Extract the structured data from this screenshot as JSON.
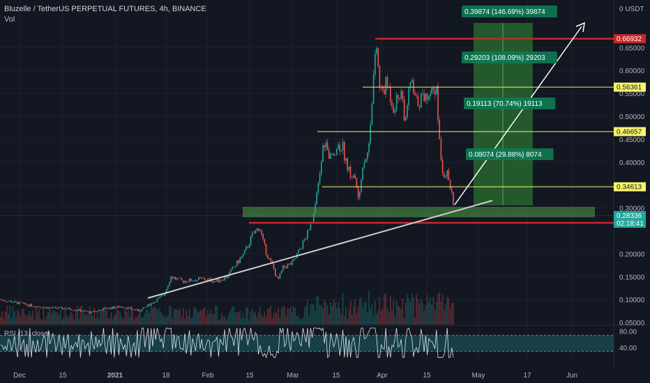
{
  "header": {
    "title": "Bluzelle / TetherUS PERPETUAL FUTURES, 4h, BINANCE",
    "volume_label": "Vol",
    "rsi_label": "RSI (13, close)"
  },
  "price_axis": {
    "currency": "USDT",
    "ticks": [
      "0.65000",
      "0.60000",
      "0.55000",
      "0.50000",
      "0.45000",
      "0.40000",
      "0.35000",
      "0.30000",
      "0.20000",
      "0.15000",
      "0.10000",
      "0.05000"
    ],
    "tick_values": [
      0.65,
      0.6,
      0.55,
      0.5,
      0.45,
      0.4,
      0.35,
      0.3,
      0.2,
      0.15,
      0.1,
      0.05
    ]
  },
  "rsi_axis": {
    "ticks": [
      "80.00",
      "40.00"
    ]
  },
  "time_axis": {
    "labels": [
      "Dec",
      "15",
      "2021",
      "18",
      "Feb",
      "15",
      "Mar",
      "15",
      "Apr",
      "15",
      "May",
      "17",
      "Jun"
    ]
  },
  "levels": [
    {
      "label": "0.66932",
      "value": 0.66932,
      "kind": "red"
    },
    {
      "label": "0.56361",
      "value": 0.56361,
      "kind": "yellow"
    },
    {
      "label": "0.46657",
      "value": 0.46657,
      "kind": "yellow"
    },
    {
      "label": "0.34613",
      "value": 0.34613,
      "kind": "yellow"
    },
    {
      "label": "0.26748",
      "value": 0.26748,
      "kind": "red"
    }
  ],
  "current_price": {
    "label": "0.28336",
    "value": 0.28336,
    "countdown": "02:18:41"
  },
  "targets": [
    {
      "label": "0.39874 (146.69%) 39874",
      "value": 0.66932
    },
    {
      "label": "0.29203 (108.09%) 29203",
      "value": 0.56361
    },
    {
      "label": "0.19113 (70.74%) 19113",
      "value": 0.46657
    },
    {
      "label": "0.08074 (29.88%) 8074",
      "value": 0.34613
    }
  ],
  "colors": {
    "background": "#131722",
    "bull": "#26a69a",
    "bear": "#ef5350",
    "red_level": "#c62828",
    "yellow_level": "#f5f56b",
    "measure_green": "#2e7d32",
    "support_zone": "#3b6e3b",
    "rsi_band": "#1b4d53",
    "current_price_tag": "#26a69a"
  },
  "chart_data": {
    "type": "candlestick",
    "symbol": "Bluzelle / TetherUS PERPETUAL FUTURES",
    "interval": "4h",
    "exchange": "BINANCE",
    "approx_closes": [
      {
        "x": "2020-12-01",
        "y": 0.09
      },
      {
        "x": "2020-12-15",
        "y": 0.075
      },
      {
        "x": "2021-01-01",
        "y": 0.085
      },
      {
        "x": "2021-01-18",
        "y": 0.14
      },
      {
        "x": "2021-02-01",
        "y": 0.14
      },
      {
        "x": "2021-02-15",
        "y": 0.25
      },
      {
        "x": "2021-02-20",
        "y": 0.16
      },
      {
        "x": "2021-03-01",
        "y": 0.22
      },
      {
        "x": "2021-03-07",
        "y": 0.44
      },
      {
        "x": "2021-03-15",
        "y": 0.4
      },
      {
        "x": "2021-03-27",
        "y": 0.66
      },
      {
        "x": "2021-04-01",
        "y": 0.55
      },
      {
        "x": "2021-04-15",
        "y": 0.52
      },
      {
        "x": "2021-04-20",
        "y": 0.35
      },
      {
        "x": "2021-04-23",
        "y": 0.283
      }
    ],
    "ylim": [
      0.0,
      0.7
    ],
    "rsi": {
      "period": 13,
      "source": "close",
      "band": [
        30,
        70
      ]
    }
  }
}
